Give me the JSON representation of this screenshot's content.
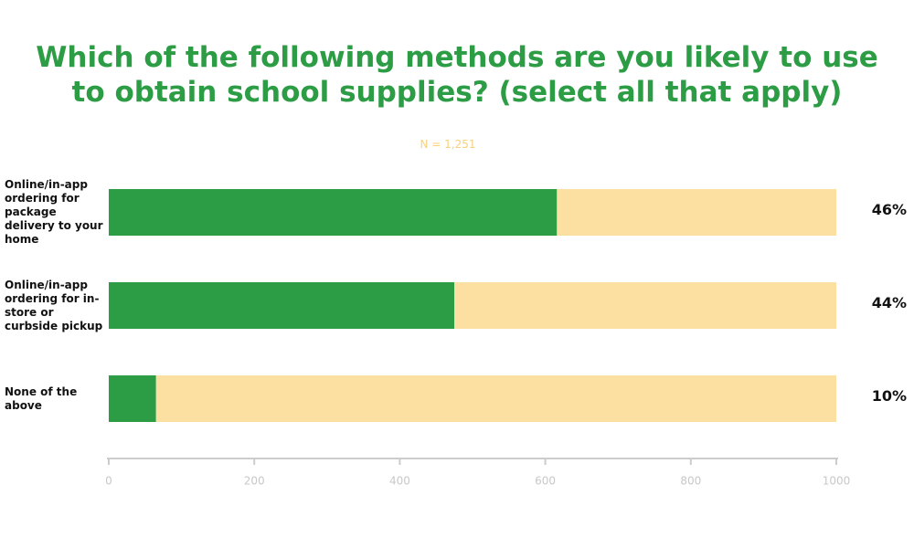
{
  "chart_data": {
    "type": "stacked_bar_horizontal",
    "title": "Which of the following methods are you likely to use to obtain school supplies? (select all that apply)",
    "subtitle": "N = 1,251",
    "categories": [
      "Online/in-app ordering for package delivery to your home",
      "Online/in-app ordering for in-store or curbside pickup",
      "None of the above"
    ],
    "series": [
      {
        "color": "#2c9c45",
        "values": [
          616,
          475,
          65
        ]
      },
      {
        "color": "#fbe0a2",
        "values": [
          384,
          525,
          935
        ]
      }
    ],
    "percentages": [
      {
        "value": 46,
        "label": "46%"
      },
      {
        "value": 44,
        "label": "44%"
      },
      {
        "value": 10,
        "label": "10%"
      }
    ],
    "xlim": [
      0,
      1000
    ],
    "xticks": [
      0,
      200,
      400,
      600,
      800,
      1000
    ]
  }
}
